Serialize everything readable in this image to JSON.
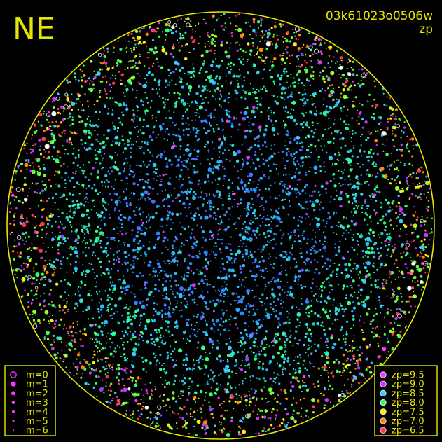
{
  "chart_data": {
    "type": "scatter",
    "title": "03k61023o0506w",
    "subtitle": "zp",
    "quadrant_label": "NE",
    "colors": {
      "background": "#000000",
      "frame": "#e6e600",
      "text": "#e6e600"
    },
    "size_legend": {
      "position": "bottom-left",
      "entries": [
        "m=0",
        "m=1",
        "m=2",
        "m=3",
        "m=4",
        "m=5",
        "m=6"
      ]
    },
    "color_legend": {
      "position": "bottom-right",
      "entries": [
        {
          "label": "zp=9.5",
          "color": "#ff33ff"
        },
        {
          "label": "zp=9.0",
          "color": "#cc33ff"
        },
        {
          "label": "zp=8.5",
          "color": "#33ccff"
        },
        {
          "label": "zp=8.0",
          "color": "#33ff66"
        },
        {
          "label": "zp=7.5",
          "color": "#ffee00"
        },
        {
          "label": "zp=7.0",
          "color": "#ff8800"
        },
        {
          "label": "zp=6.5",
          "color": "#ff3355"
        }
      ]
    },
    "star_field": {
      "description_of_density": "dense all-sky star field, blue/cyan dominant in center, green/yellow/orange toward horizon",
      "approx_star_count": 6000
    }
  }
}
